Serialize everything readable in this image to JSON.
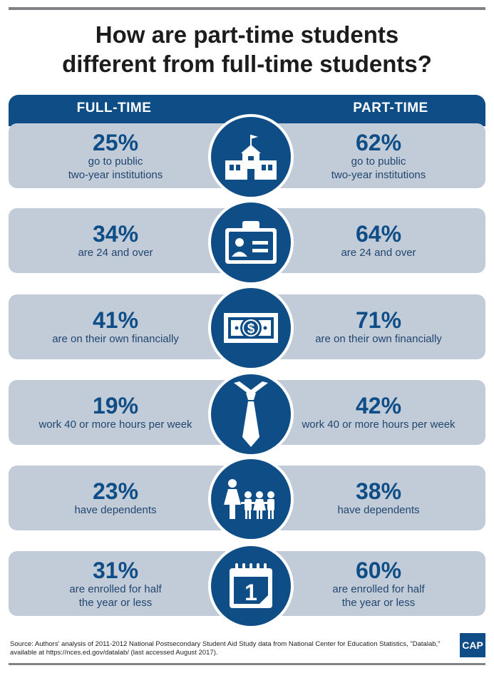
{
  "title_line1": "How are part-time students",
  "title_line2": "different from full-time students?",
  "headers": {
    "left": "FULL-TIME",
    "right": "PART-TIME"
  },
  "rows": [
    {
      "icon": "school-icon",
      "full_pct": "25%",
      "full_desc1": "go to public",
      "full_desc2": "two-year institutions",
      "part_pct": "62%",
      "part_desc1": "go to public",
      "part_desc2": "two-year institutions"
    },
    {
      "icon": "id-card-icon",
      "full_pct": "34%",
      "full_desc1": "are 24 and over",
      "full_desc2": "",
      "part_pct": "64%",
      "part_desc1": "are 24 and over",
      "part_desc2": ""
    },
    {
      "icon": "dollar-bill-icon",
      "full_pct": "41%",
      "full_desc1": "are on their own financially",
      "full_desc2": "",
      "part_pct": "71%",
      "part_desc1": "are on their own financially",
      "part_desc2": ""
    },
    {
      "icon": "necktie-icon",
      "full_pct": "19%",
      "full_desc1": "work 40 or more hours per week",
      "full_desc2": "",
      "part_pct": "42%",
      "part_desc1": "work 40 or more hours per week",
      "part_desc2": ""
    },
    {
      "icon": "family-icon",
      "full_pct": "23%",
      "full_desc1": "have dependents",
      "full_desc2": "",
      "part_pct": "38%",
      "part_desc1": "have dependents",
      "part_desc2": ""
    },
    {
      "icon": "calendar-icon",
      "full_pct": "31%",
      "full_desc1": "are enrolled for half",
      "full_desc2": "the year or less",
      "part_pct": "60%",
      "part_desc1": "are enrolled for half",
      "part_desc2": "the year or less"
    }
  ],
  "calendar_day": "1",
  "dollar_symbol": "$",
  "source_line1": "Source: Authors' analysis of 2011-2012 National Postsecondary Student Aid Study data from National Center for Education Statistics, \"Datalab,\"",
  "source_line2": "available at https://nces.ed.gov/datalab/ (last accessed August 2017).",
  "logo_text": "CAP",
  "colors": {
    "navy": "#0f4d87",
    "row_bg": "#c2ccd8",
    "rule": "#808285"
  }
}
